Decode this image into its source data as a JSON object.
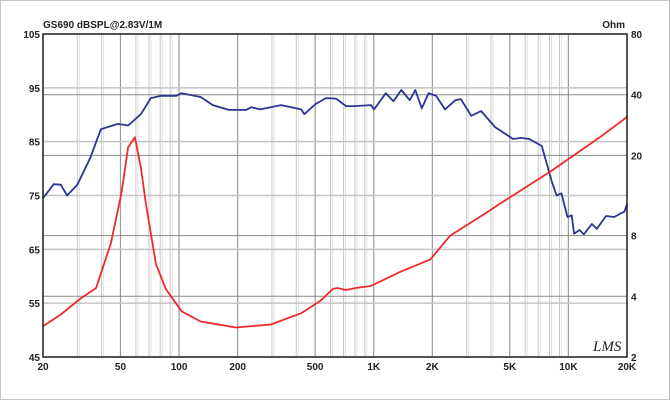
{
  "chart_data": {
    "type": "line",
    "title": "GS690 dBSPL@2.83V/1M",
    "left_axis": {
      "min": 45,
      "max": 105,
      "ticks": [
        105,
        95,
        85,
        75,
        65,
        55,
        45
      ],
      "scale": "linear"
    },
    "right_axis": {
      "label": "Ohm",
      "min": 2,
      "max": 80,
      "ticks": [
        80,
        40,
        20,
        8,
        4,
        2
      ],
      "scale": "log"
    },
    "x_axis": {
      "min": 20,
      "max": 20000,
      "scale": "log",
      "ticks": [
        20,
        50,
        100,
        200,
        500,
        1000,
        2000,
        5000,
        10000,
        20000
      ],
      "tick_labels": [
        "20",
        "50",
        "100",
        "200",
        "500",
        "1K",
        "2K",
        "5K",
        "10K",
        "20K"
      ]
    },
    "grid": true,
    "logo": "LMS",
    "series": [
      {
        "axis": "left",
        "color": "#2b3592",
        "points": [
          [
            20,
            74.5
          ],
          [
            22.7,
            77.1
          ],
          [
            24.7,
            77
          ],
          [
            26.6,
            75
          ],
          [
            30,
            77
          ],
          [
            35,
            82
          ],
          [
            39.6,
            87.3
          ],
          [
            48.4,
            88.3
          ],
          [
            54.7,
            88
          ],
          [
            63.7,
            90.1
          ],
          [
            71.6,
            93.1
          ],
          [
            80.6,
            93.5
          ],
          [
            96.4,
            93.5
          ],
          [
            103,
            94
          ],
          [
            129,
            93.3
          ],
          [
            149,
            91.8
          ],
          [
            180,
            90.9
          ],
          [
            221,
            90.9
          ],
          [
            235,
            91.4
          ],
          [
            261,
            91
          ],
          [
            334,
            91.8
          ],
          [
            424,
            91
          ],
          [
            440,
            90.1
          ],
          [
            503,
            92
          ],
          [
            568,
            93.1
          ],
          [
            640,
            93
          ],
          [
            720,
            91.6
          ],
          [
            794,
            91.6
          ],
          [
            966,
            91.8
          ],
          [
            1004,
            91
          ],
          [
            1153,
            94
          ],
          [
            1262,
            92.5
          ],
          [
            1386,
            94.6
          ],
          [
            1530,
            92.7
          ],
          [
            1636,
            94.6
          ],
          [
            1766,
            91.2
          ],
          [
            1914,
            94
          ],
          [
            2091,
            93.5
          ],
          [
            2322,
            91
          ],
          [
            2624,
            92.7
          ],
          [
            2800,
            92.9
          ],
          [
            3170,
            89.8
          ],
          [
            3560,
            90.7
          ],
          [
            4200,
            87.7
          ],
          [
            5200,
            85.5
          ],
          [
            5700,
            85.7
          ],
          [
            6300,
            85.5
          ],
          [
            7300,
            84.2
          ],
          [
            8200,
            77.7
          ],
          [
            8700,
            75
          ],
          [
            9200,
            75.4
          ],
          [
            9900,
            71
          ],
          [
            10400,
            71.3
          ],
          [
            10700,
            67.9
          ],
          [
            11400,
            68.6
          ],
          [
            12000,
            67.8
          ],
          [
            13200,
            69.7
          ],
          [
            14000,
            68.8
          ],
          [
            15600,
            71.2
          ],
          [
            17200,
            71
          ],
          [
            18600,
            71.7
          ],
          [
            19400,
            72
          ],
          [
            20000,
            73.4
          ]
        ]
      },
      {
        "axis": "right",
        "color": "#ee2a2a",
        "points": [
          [
            20,
            2.84
          ],
          [
            24.7,
            3.25
          ],
          [
            31.2,
            3.9
          ],
          [
            37.5,
            4.4
          ],
          [
            44.6,
            7.3
          ],
          [
            50.7,
            13.1
          ],
          [
            54.7,
            21.9
          ],
          [
            59.3,
            24.6
          ],
          [
            63.7,
            17.4
          ],
          [
            67.5,
            11.6
          ],
          [
            76,
            5.8
          ],
          [
            85.5,
            4.35
          ],
          [
            103,
            3.37
          ],
          [
            129,
            3.0
          ],
          [
            196,
            2.8
          ],
          [
            296,
            2.9
          ],
          [
            424,
            3.3
          ],
          [
            532,
            3.8
          ],
          [
            616,
            4.35
          ],
          [
            650,
            4.4
          ],
          [
            720,
            4.3
          ],
          [
            810,
            4.4
          ],
          [
            966,
            4.5
          ],
          [
            1373,
            5.3
          ],
          [
            1955,
            6.1
          ],
          [
            2470,
            8.0
          ],
          [
            3560,
            10
          ],
          [
            4500,
            11.6
          ],
          [
            8200,
            16.8
          ],
          [
            14500,
            24.6
          ],
          [
            20000,
            31
          ]
        ]
      }
    ]
  }
}
